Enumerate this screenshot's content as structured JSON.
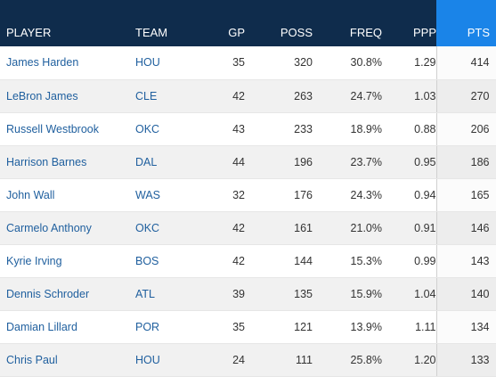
{
  "columns": {
    "player": "PLAYER",
    "team": "TEAM",
    "gp": "GP",
    "poss": "POSS",
    "freq": "FREQ",
    "ppp": "PPP",
    "pts": "PTS"
  },
  "colors": {
    "header_bg": "#0f2c4c",
    "sorted_header_bg": "#1a84e8",
    "link": "#1f5f9e"
  },
  "rows": [
    {
      "player": "James Harden",
      "team": "HOU",
      "gp": "35",
      "poss": "320",
      "freq": "30.8%",
      "ppp": "1.29",
      "pts": "414"
    },
    {
      "player": "LeBron James",
      "team": "CLE",
      "gp": "42",
      "poss": "263",
      "freq": "24.7%",
      "ppp": "1.03",
      "pts": "270"
    },
    {
      "player": "Russell Westbrook",
      "team": "OKC",
      "gp": "43",
      "poss": "233",
      "freq": "18.9%",
      "ppp": "0.88",
      "pts": "206"
    },
    {
      "player": "Harrison Barnes",
      "team": "DAL",
      "gp": "44",
      "poss": "196",
      "freq": "23.7%",
      "ppp": "0.95",
      "pts": "186"
    },
    {
      "player": "John Wall",
      "team": "WAS",
      "gp": "32",
      "poss": "176",
      "freq": "24.3%",
      "ppp": "0.94",
      "pts": "165"
    },
    {
      "player": "Carmelo Anthony",
      "team": "OKC",
      "gp": "42",
      "poss": "161",
      "freq": "21.0%",
      "ppp": "0.91",
      "pts": "146"
    },
    {
      "player": "Kyrie Irving",
      "team": "BOS",
      "gp": "42",
      "poss": "144",
      "freq": "15.3%",
      "ppp": "0.99",
      "pts": "143"
    },
    {
      "player": "Dennis Schroder",
      "team": "ATL",
      "gp": "39",
      "poss": "135",
      "freq": "15.9%",
      "ppp": "1.04",
      "pts": "140"
    },
    {
      "player": "Damian Lillard",
      "team": "POR",
      "gp": "35",
      "poss": "121",
      "freq": "13.9%",
      "ppp": "1.11",
      "pts": "134"
    },
    {
      "player": "Chris Paul",
      "team": "HOU",
      "gp": "24",
      "poss": "111",
      "freq": "25.8%",
      "ppp": "1.20",
      "pts": "133"
    }
  ]
}
